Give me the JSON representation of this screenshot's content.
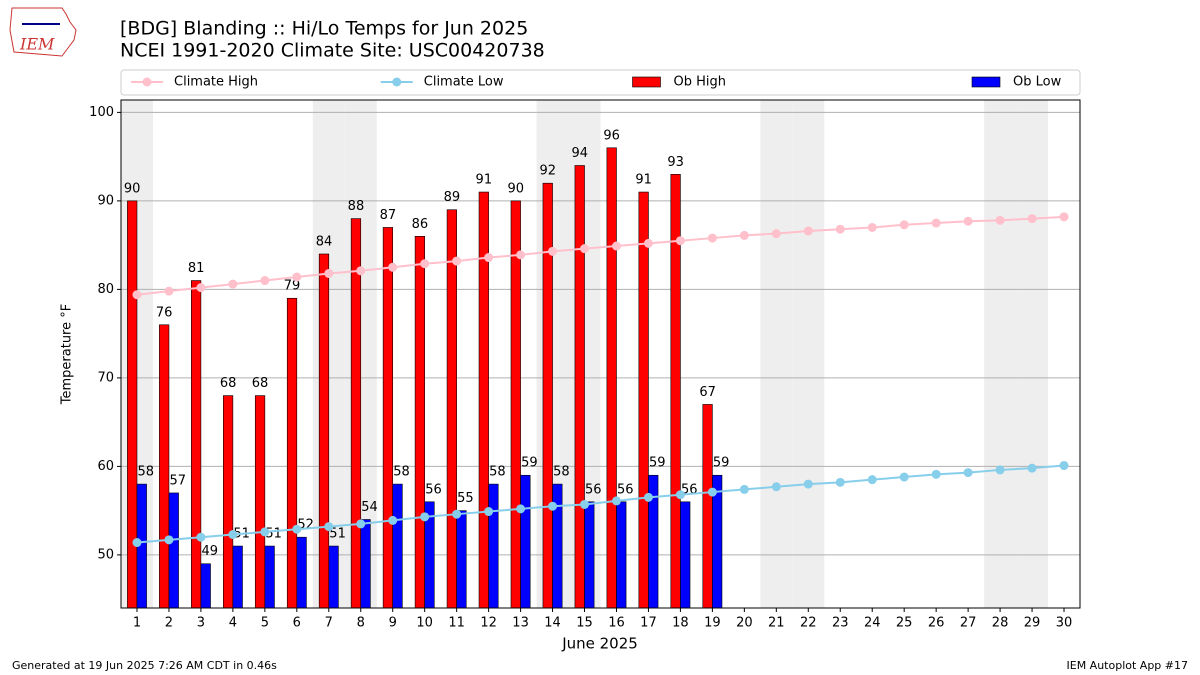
{
  "chart_data": {
    "type": "bar",
    "title": "[BDG] Blanding :: Hi/Lo Temps for Jun 2025",
    "subtitle": "NCEI 1991-2020 Climate Site: USC00420738",
    "x_label": "June 2025",
    "y_label": "Temperature °F",
    "x": [
      1,
      2,
      3,
      4,
      5,
      6,
      7,
      8,
      9,
      10,
      11,
      12,
      13,
      14,
      15,
      16,
      17,
      18,
      19,
      20,
      21,
      22,
      23,
      24,
      25,
      26,
      27,
      28,
      29,
      30
    ],
    "xlim": [
      0.5,
      30.5
    ],
    "xticks": [
      1,
      2,
      3,
      4,
      5,
      6,
      7,
      8,
      9,
      10,
      11,
      12,
      13,
      14,
      15,
      16,
      17,
      18,
      19,
      20,
      21,
      22,
      23,
      24,
      25,
      26,
      27,
      28,
      29,
      30
    ],
    "ylim": [
      44,
      101.4
    ],
    "yticks": [
      50,
      60,
      70,
      80,
      90,
      100
    ],
    "grid": true,
    "legend": "top",
    "shaded_days": [
      1,
      7,
      8,
      14,
      15,
      21,
      22,
      28,
      29
    ],
    "series": [
      {
        "name": "Climate High",
        "type": "line",
        "color": "#ffc0cb",
        "values": [
          79.4,
          79.8,
          80.2,
          80.6,
          81.0,
          81.4,
          81.8,
          82.1,
          82.5,
          82.9,
          83.2,
          83.6,
          83.9,
          84.3,
          84.6,
          84.9,
          85.2,
          85.5,
          85.8,
          86.1,
          86.3,
          86.6,
          86.8,
          87.0,
          87.3,
          87.5,
          87.7,
          87.8,
          88.0,
          88.2
        ]
      },
      {
        "name": "Climate Low",
        "type": "line",
        "color": "#87ceeb",
        "values": [
          51.4,
          51.7,
          52.0,
          52.3,
          52.6,
          52.9,
          53.2,
          53.5,
          53.9,
          54.3,
          54.6,
          54.9,
          55.2,
          55.5,
          55.7,
          56.1,
          56.5,
          56.8,
          57.1,
          57.4,
          57.7,
          58.0,
          58.2,
          58.5,
          58.8,
          59.1,
          59.3,
          59.6,
          59.8,
          60.1
        ]
      },
      {
        "name": "Ob High",
        "type": "bar",
        "color": "#ff0000",
        "values": [
          90,
          76,
          81,
          68,
          68,
          79,
          84,
          88,
          87,
          86,
          89,
          91,
          90,
          92,
          94,
          96,
          91,
          93,
          67,
          null,
          null,
          null,
          null,
          null,
          null,
          null,
          null,
          null,
          null,
          null
        ]
      },
      {
        "name": "Ob Low",
        "type": "bar",
        "color": "#0000ff",
        "values": [
          58,
          57,
          49,
          51,
          51,
          52,
          51,
          54,
          58,
          56,
          55,
          58,
          59,
          58,
          56,
          56,
          59,
          56,
          59,
          null,
          null,
          null,
          null,
          null,
          null,
          null,
          null,
          null,
          null,
          null
        ]
      }
    ]
  },
  "logo": "IEM",
  "footer": {
    "left": "Generated at 19 Jun 2025 7:26 AM CDT in 0.46s",
    "right": "IEM Autoplot App #17"
  }
}
